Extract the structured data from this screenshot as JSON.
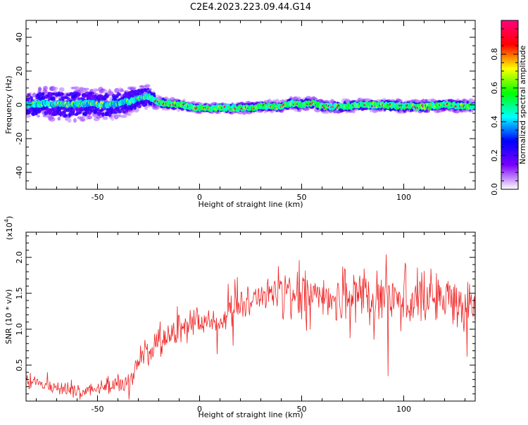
{
  "title": "C2E4.2023.223.09.44.G14",
  "chart_data": [
    {
      "type": "heatmap",
      "title": "C2E4.2023.223.09.44.G14",
      "xlabel": "Height of straight line (km)",
      "ylabel": "Frequency (Hz)",
      "xlim": [
        -85,
        135
      ],
      "ylim": [
        -50,
        50
      ],
      "x_ticks": [
        -50,
        0,
        50,
        100
      ],
      "y_ticks": [
        -40,
        -20,
        0,
        20,
        40
      ],
      "colorbar": {
        "label": "Normalized spectral amplitude",
        "range": [
          0,
          1
        ],
        "ticks": [
          0.0,
          0.2,
          0.4,
          0.6,
          0.8
        ],
        "colormap": [
          "#ffffff",
          "#7b00ff",
          "#0000ff",
          "#00ffff",
          "#00ff00",
          "#ffff00",
          "#ff0000",
          "#ff0080"
        ]
      },
      "ridge": {
        "x": [
          -85,
          -75,
          -65,
          -55,
          -45,
          -35,
          -25,
          -20,
          -10,
          0,
          10,
          20,
          30,
          40,
          45,
          50,
          55,
          60,
          70,
          80,
          90,
          100,
          110,
          120,
          135
        ],
        "frequency": [
          0,
          1,
          0,
          1,
          0,
          2,
          5,
          1,
          0,
          -2,
          -2,
          -2,
          -1,
          -1,
          1,
          0,
          1,
          -1,
          -1,
          0,
          0,
          -1,
          -1,
          0,
          -1
        ]
      },
      "spread": {
        "x": [
          -85,
          -60,
          -40,
          -25,
          -20,
          0,
          40,
          80,
          135
        ],
        "half_width": [
          8,
          9,
          8,
          6,
          3,
          2,
          3,
          3,
          3
        ]
      }
    },
    {
      "type": "line",
      "xlabel": "Height of straight line (km)",
      "ylabel": "SNR (10 * v/v)",
      "y_multiplier": "(x10",
      "y_multiplier_exp": "4",
      "xlim": [
        -85,
        135
      ],
      "ylim": [
        0,
        2.35
      ],
      "x_ticks": [
        -50,
        0,
        50,
        100
      ],
      "y_ticks": [
        0.5,
        1.0,
        1.5,
        2.0
      ],
      "color": "#ee2222",
      "series": [
        {
          "x": [
            -85,
            -80,
            -75,
            -70,
            -65,
            -60,
            -55,
            -50,
            -45,
            -40,
            -35,
            -33,
            -30,
            -25,
            -20,
            -15,
            -10,
            -5,
            0,
            5,
            10,
            15,
            20,
            25,
            30,
            35,
            40,
            45,
            50,
            55,
            60,
            65,
            70,
            75,
            80,
            85,
            90,
            95,
            100,
            105,
            110,
            115,
            120,
            125,
            130,
            135
          ],
          "values": [
            0.25,
            0.28,
            0.2,
            0.18,
            0.16,
            0.18,
            0.15,
            0.16,
            0.2,
            0.22,
            0.24,
            0.35,
            0.55,
            0.7,
            0.85,
            0.9,
            1.0,
            1.05,
            1.1,
            1.15,
            1.05,
            1.25,
            1.3,
            1.4,
            1.45,
            1.5,
            1.5,
            1.55,
            1.5,
            1.55,
            1.5,
            1.45,
            1.5,
            1.5,
            1.5,
            1.45,
            1.4,
            1.45,
            1.5,
            1.4,
            1.45,
            1.5,
            1.4,
            1.35,
            1.3,
            1.35
          ]
        }
      ]
    }
  ]
}
